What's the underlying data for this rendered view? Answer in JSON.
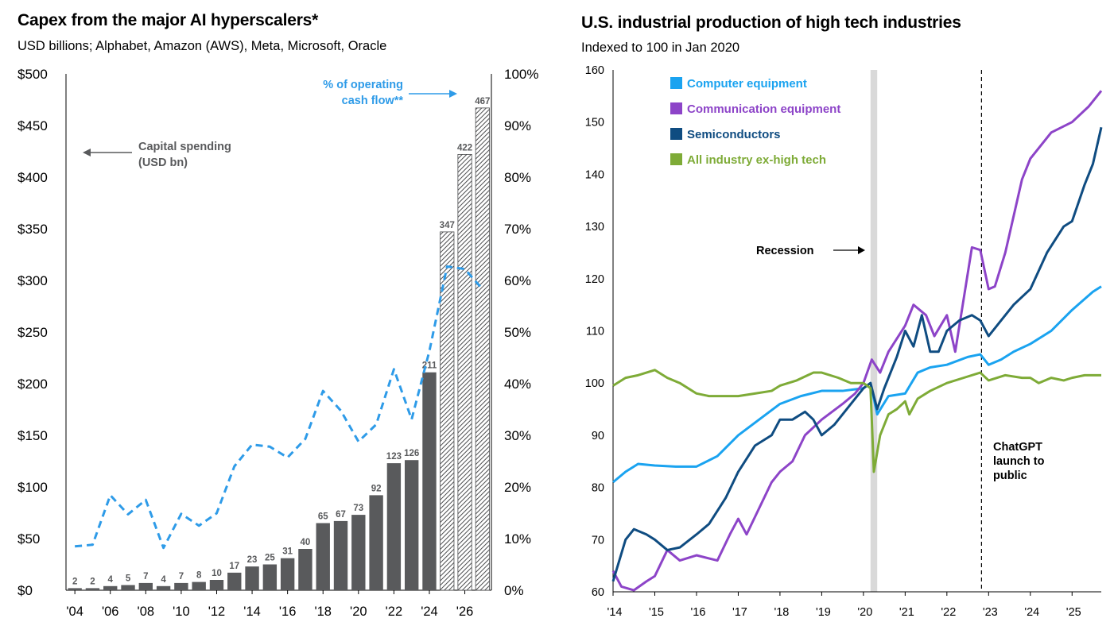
{
  "left": {
    "title": "Capex from the major AI hyperscalers*",
    "subtitle": "USD billions; Alphabet, Amazon (AWS), Meta, Microsoft, Oracle",
    "annotation_capex": [
      "Capital spending",
      "(USD bn)"
    ],
    "annotation_ocf": [
      "% of operating",
      "cash flow**"
    ]
  },
  "right": {
    "title": "U.S. industrial production of high tech industries",
    "subtitle": "Indexed to 100 in Jan 2020",
    "annotation_recession": "Recession",
    "annotation_chatgpt": [
      "ChatGPT",
      "launch to",
      "public"
    ]
  },
  "chart_data": [
    {
      "type": "bar",
      "title": "Capex from the major AI hyperscalers*",
      "subtitle": "USD billions; Alphabet, Amazon (AWS), Meta, Microsoft, Oracle",
      "x_tick_labels": [
        "'04",
        "'06",
        "'08",
        "'10",
        "'12",
        "'14",
        "'16",
        "'18",
        "'20",
        "'22",
        "'24",
        "'26"
      ],
      "categories": [
        "2004",
        "2005",
        "2006",
        "2007",
        "2008",
        "2009",
        "2010",
        "2011",
        "2012",
        "2013",
        "2014",
        "2015",
        "2016",
        "2017",
        "2018",
        "2019",
        "2020",
        "2021",
        "2022",
        "2023",
        "2024",
        "2025",
        "2026",
        "2027"
      ],
      "series": [
        {
          "name": "Capital spending (USD bn)",
          "axis": "left",
          "values": [
            2,
            2,
            4,
            5,
            7,
            4,
            7,
            8,
            10,
            17,
            23,
            25,
            31,
            40,
            65,
            67,
            73,
            92,
            123,
            126,
            211,
            347,
            422,
            467
          ],
          "labels": [
            "2",
            "2",
            "4",
            "5",
            "7",
            "4",
            "7",
            "8",
            "10",
            "17",
            "23",
            "25",
            "31",
            "40",
            "65",
            "67",
            "73",
            "92",
            "123",
            "126",
            "211",
            "347",
            "422",
            "467"
          ],
          "forecast_from_index": 21,
          "color": "#595a5c"
        },
        {
          "name": "% of operating cash flow**",
          "axis": "right",
          "style": "dashed-line",
          "color": "#2e9be8",
          "values": [
            8.5,
            8.8,
            18.4,
            14.7,
            17.5,
            8.2,
            14.8,
            12.5,
            14.9,
            24.0,
            28.2,
            27.8,
            25.7,
            29.3,
            38.6,
            34.8,
            28.8,
            32.1,
            42.8,
            33.1,
            46.3,
            62.7,
            62.2,
            58.3
          ]
        }
      ],
      "y_left": {
        "ylim": [
          0,
          500
        ],
        "ticks": [
          "$0",
          "$50",
          "$100",
          "$150",
          "$200",
          "$250",
          "$300",
          "$350",
          "$400",
          "$450",
          "$500"
        ]
      },
      "y_right": {
        "ylim": [
          0,
          100
        ],
        "ticks": [
          "0%",
          "10%",
          "20%",
          "30%",
          "40%",
          "50%",
          "60%",
          "70%",
          "80%",
          "90%",
          "100%"
        ]
      }
    },
    {
      "type": "line",
      "title": "U.S. industrial production of high tech industries",
      "subtitle": "Indexed to 100 in Jan 2020",
      "x_tick_labels": [
        "'14",
        "'15",
        "'16",
        "'17",
        "'18",
        "'19",
        "'20",
        "'21",
        "'22",
        "'23",
        "'24",
        "'25"
      ],
      "xlim": [
        2014.0,
        2025.7
      ],
      "ylim": [
        60,
        160
      ],
      "y_ticks": [
        "60",
        "70",
        "80",
        "90",
        "100",
        "110",
        "120",
        "130",
        "140",
        "150",
        "160"
      ],
      "legend": "top-left",
      "recession_band": [
        2020.17,
        2020.33
      ],
      "event_line_x": 2022.83,
      "series": [
        {
          "name": "Computer equipment",
          "color": "#1aa3f0",
          "points": [
            [
              2014.0,
              81
            ],
            [
              2014.3,
              83
            ],
            [
              2014.6,
              84.5
            ],
            [
              2015.0,
              84.2
            ],
            [
              2015.5,
              84
            ],
            [
              2016.0,
              84
            ],
            [
              2016.5,
              86
            ],
            [
              2017.0,
              90
            ],
            [
              2017.5,
              93
            ],
            [
              2018.0,
              96
            ],
            [
              2018.5,
              97.5
            ],
            [
              2019.0,
              98.5
            ],
            [
              2019.5,
              98.5
            ],
            [
              2020.0,
              99
            ],
            [
              2020.17,
              100
            ],
            [
              2020.33,
              94
            ],
            [
              2020.6,
              97.5
            ],
            [
              2021.0,
              98
            ],
            [
              2021.3,
              102
            ],
            [
              2021.6,
              103
            ],
            [
              2022.0,
              103.5
            ],
            [
              2022.5,
              105
            ],
            [
              2022.8,
              105.5
            ],
            [
              2023.0,
              103.5
            ],
            [
              2023.3,
              104.5
            ],
            [
              2023.6,
              106
            ],
            [
              2024.0,
              107.5
            ],
            [
              2024.5,
              110
            ],
            [
              2025.0,
              114
            ],
            [
              2025.5,
              117.5
            ],
            [
              2025.7,
              118.5
            ]
          ]
        },
        {
          "name": "Communication equipment",
          "color": "#8d44c8",
          "points": [
            [
              2014.0,
              64
            ],
            [
              2014.2,
              61
            ],
            [
              2014.5,
              60.3
            ],
            [
              2014.8,
              62
            ],
            [
              2015.0,
              63
            ],
            [
              2015.3,
              68
            ],
            [
              2015.6,
              66
            ],
            [
              2016.0,
              67
            ],
            [
              2016.5,
              66
            ],
            [
              2016.8,
              71
            ],
            [
              2017.0,
              74
            ],
            [
              2017.2,
              71
            ],
            [
              2017.5,
              76
            ],
            [
              2017.8,
              81
            ],
            [
              2018.0,
              83
            ],
            [
              2018.3,
              85
            ],
            [
              2018.6,
              90
            ],
            [
              2019.0,
              93
            ],
            [
              2019.5,
              96
            ],
            [
              2019.8,
              98
            ],
            [
              2020.0,
              100
            ],
            [
              2020.2,
              104.5
            ],
            [
              2020.4,
              102
            ],
            [
              2020.6,
              106
            ],
            [
              2021.0,
              111
            ],
            [
              2021.2,
              115
            ],
            [
              2021.5,
              113
            ],
            [
              2021.7,
              109
            ],
            [
              2022.0,
              113
            ],
            [
              2022.2,
              106
            ],
            [
              2022.4,
              116
            ],
            [
              2022.6,
              126
            ],
            [
              2022.8,
              125.5
            ],
            [
              2023.0,
              118
            ],
            [
              2023.15,
              118.5
            ],
            [
              2023.4,
              125
            ],
            [
              2023.8,
              139
            ],
            [
              2024.0,
              143
            ],
            [
              2024.5,
              148
            ],
            [
              2025.0,
              150
            ],
            [
              2025.4,
              153
            ],
            [
              2025.7,
              156
            ]
          ]
        },
        {
          "name": "Semiconductors",
          "color": "#0f4c81",
          "points": [
            [
              2014.0,
              62
            ],
            [
              2014.3,
              70
            ],
            [
              2014.5,
              72
            ],
            [
              2014.8,
              71
            ],
            [
              2015.0,
              70
            ],
            [
              2015.3,
              68
            ],
            [
              2015.6,
              68.5
            ],
            [
              2016.0,
              71
            ],
            [
              2016.3,
              73
            ],
            [
              2016.7,
              78
            ],
            [
              2017.0,
              83
            ],
            [
              2017.4,
              88
            ],
            [
              2017.8,
              90
            ],
            [
              2018.0,
              93
            ],
            [
              2018.3,
              93
            ],
            [
              2018.6,
              94.5
            ],
            [
              2018.8,
              93
            ],
            [
              2019.0,
              90
            ],
            [
              2019.3,
              92
            ],
            [
              2019.6,
              95
            ],
            [
              2020.0,
              99
            ],
            [
              2020.17,
              100
            ],
            [
              2020.33,
              95
            ],
            [
              2020.5,
              99
            ],
            [
              2020.8,
              105
            ],
            [
              2021.0,
              110
            ],
            [
              2021.2,
              107
            ],
            [
              2021.4,
              113
            ],
            [
              2021.6,
              106
            ],
            [
              2021.8,
              106
            ],
            [
              2022.0,
              110
            ],
            [
              2022.3,
              112
            ],
            [
              2022.6,
              113
            ],
            [
              2022.8,
              112
            ],
            [
              2023.0,
              109
            ],
            [
              2023.3,
              112
            ],
            [
              2023.6,
              115
            ],
            [
              2024.0,
              118
            ],
            [
              2024.4,
              125
            ],
            [
              2024.8,
              130
            ],
            [
              2025.0,
              131
            ],
            [
              2025.3,
              138
            ],
            [
              2025.5,
              142
            ],
            [
              2025.7,
              149
            ]
          ]
        },
        {
          "name": "All industry ex-high tech",
          "color": "#7eab37",
          "points": [
            [
              2014.0,
              99.5
            ],
            [
              2014.3,
              101
            ],
            [
              2014.6,
              101.5
            ],
            [
              2015.0,
              102.5
            ],
            [
              2015.3,
              101
            ],
            [
              2015.6,
              100
            ],
            [
              2016.0,
              98
            ],
            [
              2016.3,
              97.5
            ],
            [
              2016.6,
              97.5
            ],
            [
              2017.0,
              97.5
            ],
            [
              2017.4,
              98
            ],
            [
              2017.8,
              98.5
            ],
            [
              2018.0,
              99.5
            ],
            [
              2018.4,
              100.5
            ],
            [
              2018.8,
              102
            ],
            [
              2019.0,
              102
            ],
            [
              2019.4,
              101
            ],
            [
              2019.7,
              100
            ],
            [
              2020.0,
              100
            ],
            [
              2020.17,
              99
            ],
            [
              2020.25,
              83
            ],
            [
              2020.4,
              90
            ],
            [
              2020.6,
              94
            ],
            [
              2020.8,
              95
            ],
            [
              2021.0,
              96.5
            ],
            [
              2021.1,
              94
            ],
            [
              2021.3,
              97
            ],
            [
              2021.6,
              98.5
            ],
            [
              2022.0,
              100
            ],
            [
              2022.4,
              101
            ],
            [
              2022.8,
              102
            ],
            [
              2023.0,
              100.5
            ],
            [
              2023.4,
              101.5
            ],
            [
              2023.8,
              101
            ],
            [
              2024.0,
              101
            ],
            [
              2024.2,
              100
            ],
            [
              2024.5,
              101
            ],
            [
              2024.8,
              100.5
            ],
            [
              2025.0,
              101
            ],
            [
              2025.3,
              101.5
            ],
            [
              2025.7,
              101.5
            ]
          ]
        }
      ]
    }
  ]
}
